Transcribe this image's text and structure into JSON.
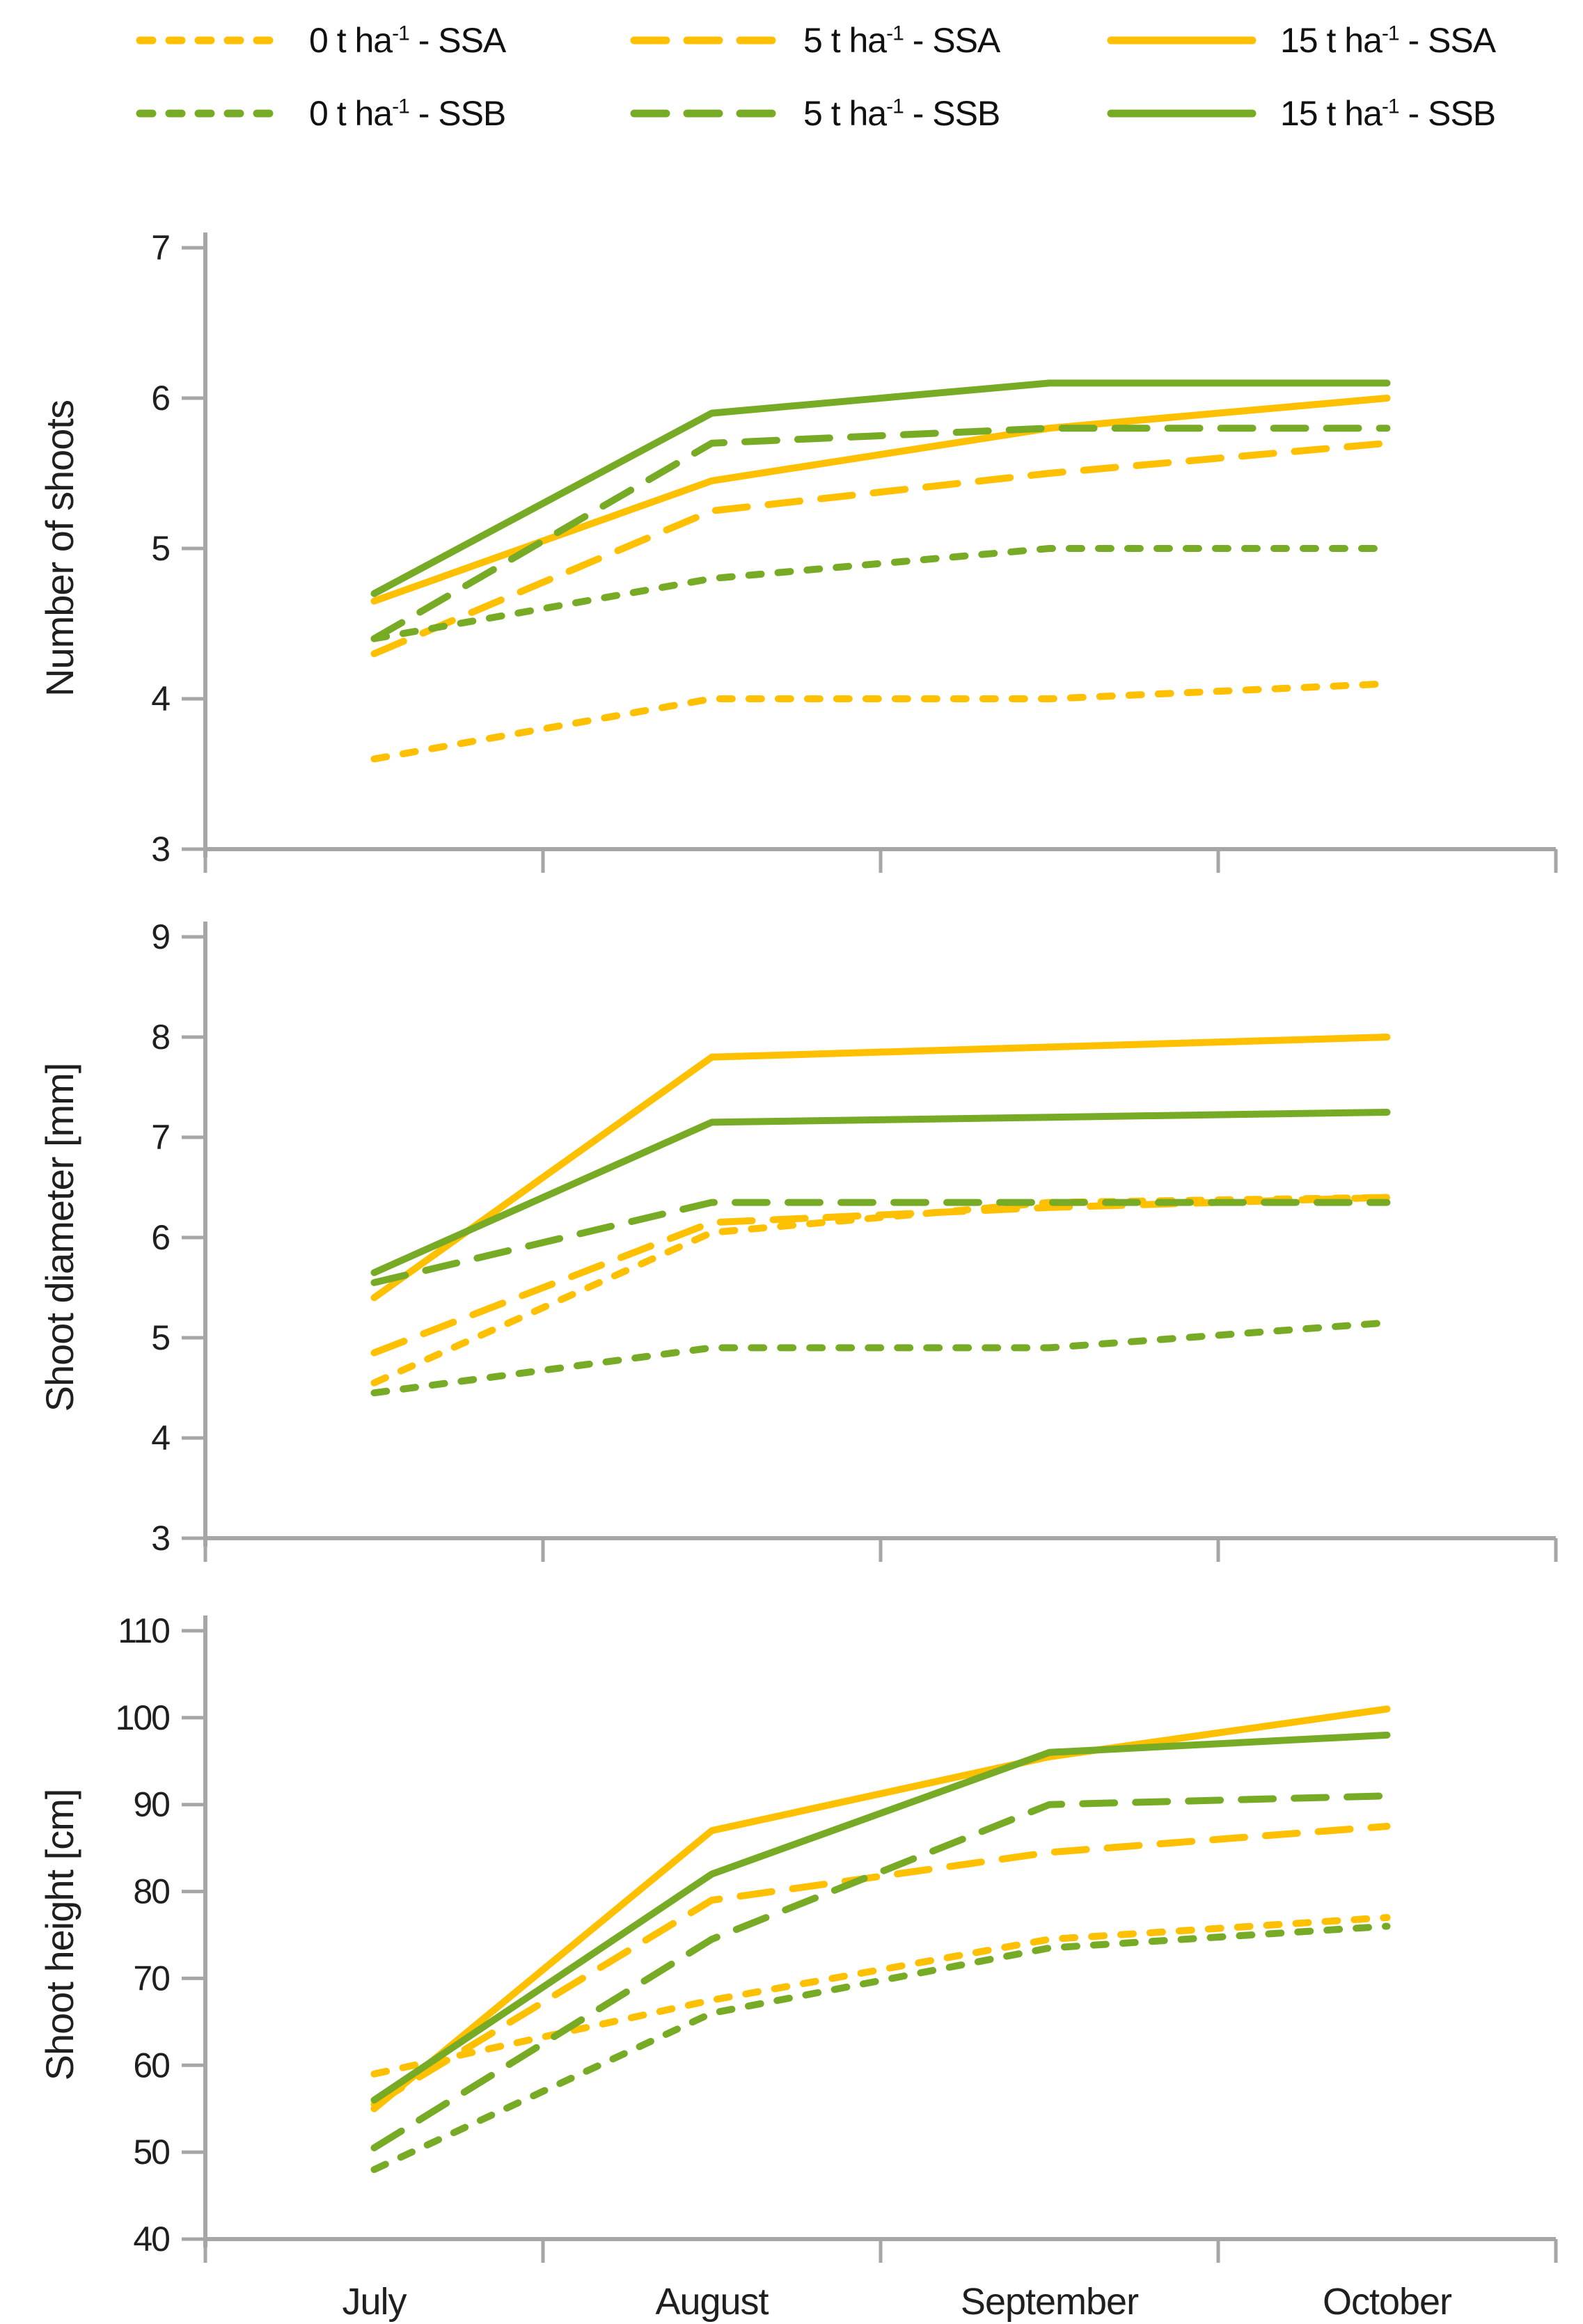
{
  "colors": {
    "ssa_yellow": "#FFC000",
    "ssb_green": "#77AB26",
    "axis": "#A6A6A6",
    "text": "#1f1f1f"
  },
  "legend": {
    "items": [
      {
        "pre": "0 t ha",
        "sup": "-1",
        "post": " - SSA",
        "color": "#FFC000",
        "dash": "short",
        "row": 0,
        "col": 0
      },
      {
        "pre": "5 t ha",
        "sup": "-1",
        "post": " - SSA",
        "color": "#FFC000",
        "dash": "long",
        "row": 0,
        "col": 1
      },
      {
        "pre": "15 t ha",
        "sup": "-1",
        "post": " - SSA",
        "color": "#FFC000",
        "dash": "solid",
        "row": 0,
        "col": 2
      },
      {
        "pre": "0 t ha",
        "sup": "-1",
        "post": " - SSB",
        "color": "#77AB26",
        "dash": "short",
        "row": 1,
        "col": 0
      },
      {
        "pre": "5 t ha",
        "sup": "-1",
        "post": " - SSB",
        "color": "#77AB26",
        "dash": "long",
        "row": 1,
        "col": 1
      },
      {
        "pre": "15 t ha",
        "sup": "-1",
        "post": " - SSB",
        "color": "#77AB26",
        "dash": "solid",
        "row": 1,
        "col": 2
      }
    ]
  },
  "chart_data": [
    {
      "type": "line",
      "title": "",
      "ylabel": "Number of shoots",
      "xlabel": "",
      "ylim": [
        3,
        7
      ],
      "yticks": [
        7,
        6,
        5,
        4,
        3
      ],
      "grid": false,
      "legend_position": "top",
      "categories": [
        "July",
        "August",
        "September",
        "October"
      ],
      "series": [
        {
          "name": "0 t ha-1 - SSA",
          "color": "#FFC000",
          "dash": "short",
          "values": [
            3.6,
            4.0,
            4.0,
            4.1
          ]
        },
        {
          "name": "5 t ha-1 - SSA",
          "color": "#FFC000",
          "dash": "long",
          "values": [
            4.3,
            5.25,
            5.5,
            5.7
          ]
        },
        {
          "name": "15 t ha-1 - SSA",
          "color": "#FFC000",
          "dash": "solid",
          "values": [
            4.65,
            5.45,
            5.8,
            6.0
          ]
        },
        {
          "name": "0 t ha-1 - SSB",
          "color": "#77AB26",
          "dash": "short",
          "values": [
            4.4,
            4.8,
            5.0,
            5.0
          ]
        },
        {
          "name": "5 t ha-1 - SSB",
          "color": "#77AB26",
          "dash": "long",
          "values": [
            4.4,
            5.7,
            5.8,
            5.8
          ]
        },
        {
          "name": "15 t ha-1 - SSB",
          "color": "#77AB26",
          "dash": "solid",
          "values": [
            4.7,
            5.9,
            6.1,
            6.1
          ]
        }
      ]
    },
    {
      "type": "line",
      "title": "",
      "ylabel": "Shoot diameter [mm]",
      "xlabel": "",
      "ylim": [
        3,
        9
      ],
      "yticks": [
        9,
        8,
        7,
        6,
        5,
        4,
        3
      ],
      "grid": false,
      "legend_position": "top",
      "categories": [
        "July",
        "August",
        "September",
        "October"
      ],
      "series": [
        {
          "name": "0 t ha-1 - SSA",
          "color": "#FFC000",
          "dash": "short",
          "values": [
            4.55,
            6.05,
            6.35,
            6.4
          ]
        },
        {
          "name": "5 t ha-1 - SSA",
          "color": "#FFC000",
          "dash": "long",
          "values": [
            4.85,
            6.15,
            6.3,
            6.4
          ]
        },
        {
          "name": "15 t ha-1 - SSA",
          "color": "#FFC000",
          "dash": "solid",
          "values": [
            5.4,
            7.8,
            7.9,
            8.0
          ]
        },
        {
          "name": "0 t ha-1 - SSB",
          "color": "#77AB26",
          "dash": "short",
          "values": [
            4.45,
            4.9,
            4.9,
            5.15
          ]
        },
        {
          "name": "5 t ha-1 - SSB",
          "color": "#77AB26",
          "dash": "long",
          "values": [
            5.55,
            6.35,
            6.35,
            6.35
          ]
        },
        {
          "name": "15 t ha-1 - SSB",
          "color": "#77AB26",
          "dash": "solid",
          "values": [
            5.65,
            7.15,
            7.2,
            7.25
          ]
        }
      ]
    },
    {
      "type": "line",
      "title": "",
      "ylabel": "Shoot height [cm]",
      "xlabel": "",
      "ylim": [
        40,
        110
      ],
      "yticks": [
        110,
        100,
        90,
        80,
        70,
        60,
        50,
        40
      ],
      "grid": false,
      "legend_position": "top",
      "categories": [
        "July",
        "August",
        "September",
        "October"
      ],
      "series": [
        {
          "name": "0 t ha-1 - SSA",
          "color": "#FFC000",
          "dash": "short",
          "values": [
            59,
            67.5,
            74.5,
            77
          ]
        },
        {
          "name": "5 t ha-1 - SSA",
          "color": "#FFC000",
          "dash": "long",
          "values": [
            55.5,
            79,
            84.5,
            87.5
          ]
        },
        {
          "name": "15 t ha-1 - SSA",
          "color": "#FFC000",
          "dash": "solid",
          "values": [
            55,
            87,
            95.5,
            101
          ]
        },
        {
          "name": "0 t ha-1 - SSB",
          "color": "#77AB26",
          "dash": "short",
          "values": [
            48,
            66,
            73.5,
            76
          ]
        },
        {
          "name": "5 t ha-1 - SSB",
          "color": "#77AB26",
          "dash": "long",
          "values": [
            50.5,
            74.5,
            90,
            91
          ]
        },
        {
          "name": "15 t ha-1 - SSB",
          "color": "#77AB26",
          "dash": "solid",
          "values": [
            56,
            82,
            96,
            98
          ]
        }
      ]
    }
  ]
}
